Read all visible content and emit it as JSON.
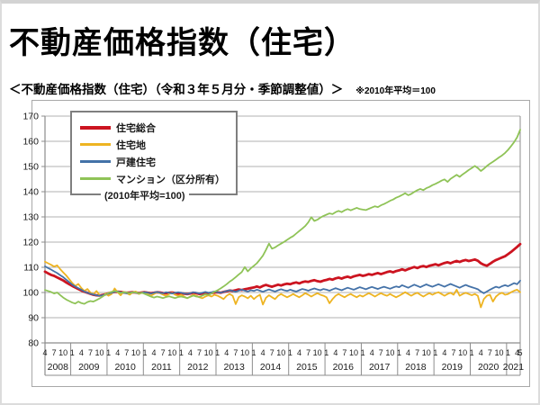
{
  "page": {
    "title": "不動産価格指数（住宅）",
    "subtitle": "＜不動産価格指数（住宅）（令和３年５月分・季節調整値）＞",
    "note": "※2010年平均＝100"
  },
  "chart_data": {
    "type": "line",
    "title": "不動産価格指数（住宅）",
    "annotation": "(2010年平均=100)",
    "x_unit": "month",
    "x_start": "2008-04",
    "x_end": "2021-05",
    "x_year_labels": [
      "2008",
      "2009",
      "2010",
      "2011",
      "2012",
      "2013",
      "2014",
      "2015",
      "2016",
      "2017",
      "2018",
      "2019",
      "2020",
      "2021"
    ],
    "x_month_tick_labels": {
      "first_year": [
        4,
        7,
        10
      ],
      "regular_years": [
        1,
        4,
        7,
        10
      ],
      "last_year": [
        1,
        4,
        5
      ]
    },
    "ylim": [
      80,
      170
    ],
    "y_ticks": [
      80,
      90,
      100,
      110,
      120,
      130,
      140,
      150,
      160,
      170
    ],
    "grid": "horizontal",
    "legend_position": "top-left",
    "colors": {
      "grid": "#b0b0b0",
      "axis": "#8c8c8c",
      "text": "#1a1a1a"
    },
    "series": [
      {
        "name": "住宅総合",
        "color": "#cc1420",
        "width": 2.8,
        "values": [
          108.3,
          107.6,
          107.0,
          106.6,
          106.0,
          105.4,
          104.8,
          104.0,
          103.3,
          102.6,
          102.0,
          101.4,
          100.8,
          100.3,
          99.9,
          99.5,
          99.1,
          98.9,
          98.8,
          99.0,
          99.3,
          99.7,
          100.0,
          100.2,
          100.3,
          100.2,
          100.0,
          99.9,
          100.0,
          100.1,
          100.0,
          99.8,
          100.0,
          100.1,
          99.9,
          99.7,
          99.9,
          100.1,
          100.0,
          99.8,
          99.7,
          99.9,
          100.0,
          99.8,
          99.6,
          99.7,
          99.5,
          99.4,
          99.6,
          99.9,
          99.7,
          99.4,
          99.6,
          99.8,
          99.6,
          99.8,
          100.0,
          100.1,
          99.9,
          100.2,
          100.5,
          100.8,
          100.6,
          100.9,
          101.2,
          101.0,
          101.3,
          101.5,
          101.8,
          102.0,
          102.4,
          102.0,
          102.6,
          103.0,
          102.6,
          102.3,
          102.7,
          103.1,
          102.8,
          103.2,
          103.5,
          103.3,
          103.7,
          104.0,
          103.6,
          104.1,
          104.4,
          104.2,
          104.6,
          104.9,
          104.5,
          104.3,
          104.7,
          105.0,
          105.4,
          105.1,
          105.6,
          105.9,
          105.5,
          106.0,
          106.3,
          105.9,
          106.4,
          106.7,
          107.0,
          106.6,
          106.9,
          107.3,
          107.0,
          107.4,
          107.7,
          107.3,
          107.7,
          108.1,
          108.4,
          108.0,
          108.5,
          108.8,
          109.2,
          108.8,
          109.3,
          109.7,
          110.1,
          109.7,
          110.2,
          110.5,
          110.1,
          110.6,
          110.9,
          111.2,
          110.8,
          111.3,
          111.7,
          112.0,
          111.6,
          112.1,
          112.5,
          112.1,
          112.6,
          112.9,
          112.5,
          112.8,
          113.1,
          112.6,
          111.6,
          111.0,
          110.6,
          111.4,
          112.2,
          112.9,
          113.4,
          113.9,
          114.4,
          115.2,
          116.1,
          117.1,
          118.1,
          119.2
        ]
      },
      {
        "name": "住宅地",
        "color": "#eeb422",
        "width": 1.8,
        "values": [
          112.2,
          111.6,
          111.0,
          110.3,
          110.8,
          109.3,
          108.0,
          106.8,
          105.3,
          103.8,
          102.6,
          103.4,
          101.8,
          100.6,
          101.4,
          100.0,
          99.3,
          100.6,
          99.0,
          98.4,
          99.6,
          98.7,
          99.4,
          101.6,
          100.1,
          98.9,
          100.3,
          99.7,
          99.1,
          100.1,
          100.4,
          99.4,
          99.9,
          100.1,
          99.4,
          98.7,
          99.4,
          100.1,
          99.7,
          99.1,
          98.7,
          99.4,
          99.9,
          99.1,
          98.7,
          99.1,
          98.4,
          97.7,
          98.4,
          99.1,
          98.7,
          98.1,
          97.7,
          98.4,
          98.9,
          98.4,
          99.1,
          98.7,
          98.1,
          97.4,
          98.7,
          99.4,
          98.7,
          95.4,
          98.1,
          98.9,
          98.4,
          97.7,
          98.7,
          97.4,
          98.4,
          99.1,
          95.2,
          97.9,
          98.9,
          98.1,
          97.4,
          98.7,
          99.4,
          98.7,
          98.1,
          98.7,
          99.4,
          98.7,
          98.1,
          98.9,
          99.7,
          99.1,
          98.4,
          99.1,
          99.7,
          99.1,
          98.7,
          98.1,
          95.7,
          97.4,
          98.7,
          99.4,
          98.7,
          98.1,
          98.9,
          99.4,
          98.7,
          98.1,
          98.9,
          98.4,
          99.1,
          99.7,
          99.1,
          98.4,
          99.1,
          99.7,
          99.1,
          98.7,
          99.4,
          98.7,
          98.1,
          98.7,
          99.4,
          100.1,
          99.4,
          98.7,
          99.4,
          99.9,
          99.1,
          98.4,
          99.1,
          99.7,
          99.1,
          99.7,
          100.1,
          99.4,
          98.7,
          99.4,
          99.9,
          99.1,
          101.1,
          98.7,
          99.4,
          99.9,
          99.4,
          98.9,
          99.4,
          98.7,
          94.1,
          97.4,
          98.7,
          99.1,
          96.4,
          98.4,
          99.4,
          99.9,
          99.1,
          99.4,
          100.1,
          100.7,
          101.1,
          100.1
        ]
      },
      {
        "name": "戸建住宅",
        "color": "#4472a8",
        "width": 1.8,
        "values": [
          110.4,
          109.7,
          109.1,
          108.4,
          107.7,
          106.9,
          106.1,
          105.1,
          104.1,
          103.1,
          102.4,
          101.7,
          101.1,
          100.4,
          99.9,
          99.5,
          99.2,
          98.9,
          98.7,
          98.9,
          99.2,
          99.6,
          99.9,
          100.2,
          100.4,
          100.1,
          99.9,
          99.7,
          99.9,
          100.1,
          99.9,
          99.7,
          99.9,
          100.1,
          99.9,
          99.6,
          99.9,
          100.2,
          99.9,
          99.7,
          100.1,
          99.9,
          99.6,
          99.9,
          100.1,
          99.9,
          99.6,
          99.4,
          99.7,
          100.1,
          99.9,
          99.6,
          99.9,
          100.2,
          99.9,
          100.1,
          100.4,
          100.1,
          99.9,
          100.2,
          100.6,
          100.9,
          100.6,
          100.3,
          100.7,
          101.1,
          100.7,
          100.4,
          100.9,
          100.6,
          101.1,
          100.7,
          100.3,
          100.8,
          101.2,
          100.8,
          100.4,
          100.9,
          101.3,
          100.9,
          100.6,
          101.1,
          100.7,
          100.4,
          100.9,
          101.4,
          101.1,
          100.7,
          101.2,
          101.6,
          101.2,
          100.9,
          101.4,
          101.1,
          100.7,
          101.2,
          101.7,
          101.3,
          100.9,
          101.4,
          101.9,
          101.5,
          101.1,
          101.6,
          102.1,
          101.7,
          101.3,
          101.8,
          102.2,
          101.8,
          101.4,
          101.9,
          102.3,
          101.9,
          101.5,
          102.0,
          102.4,
          102.1,
          102.9,
          102.4,
          101.9,
          102.5,
          103.1,
          102.6,
          102.1,
          102.7,
          103.2,
          102.7,
          102.3,
          102.8,
          103.3,
          102.8,
          102.3,
          102.9,
          103.4,
          102.9,
          102.4,
          101.9,
          102.5,
          103.0,
          102.5,
          102.1,
          101.7,
          101.3,
          100.4,
          99.7,
          100.4,
          101.1,
          101.7,
          102.3,
          101.9,
          102.5,
          102.9,
          102.5,
          103.1,
          103.7,
          103.3,
          104.7
        ]
      },
      {
        "name": "マンション（区分所有）",
        "color": "#8fc357",
        "width": 1.8,
        "values": [
          101.0,
          100.6,
          100.2,
          99.6,
          100.0,
          99.0,
          98.0,
          97.2,
          96.6,
          96.0,
          95.6,
          96.4,
          95.8,
          95.5,
          96.2,
          96.6,
          96.4,
          97.0,
          97.6,
          98.4,
          99.2,
          99.8,
          100.3,
          100.6,
          100.2,
          99.8,
          100.1,
          100.0,
          99.7,
          100.1,
          100.0,
          99.7,
          99.9,
          99.4,
          98.9,
          98.4,
          98.0,
          98.4,
          98.1,
          97.8,
          98.2,
          98.5,
          98.1,
          97.8,
          98.2,
          98.4,
          98.1,
          97.8,
          98.3,
          98.8,
          98.4,
          98.2,
          98.8,
          99.3,
          99.0,
          99.6,
          100.3,
          100.9,
          101.6,
          102.4,
          103.3,
          104.3,
          105.1,
          106.1,
          107.1,
          108.1,
          110.1,
          108.4,
          109.6,
          110.6,
          111.6,
          113.1,
          114.6,
          116.9,
          119.4,
          117.4,
          117.9,
          118.7,
          119.4,
          120.1,
          120.9,
          121.7,
          122.4,
          123.4,
          124.4,
          125.4,
          126.4,
          127.9,
          129.9,
          128.4,
          128.9,
          129.7,
          130.4,
          130.9,
          131.4,
          131.1,
          131.9,
          132.4,
          131.9,
          132.6,
          133.1,
          132.6,
          133.1,
          133.6,
          133.1,
          132.9,
          132.7,
          133.2,
          133.7,
          134.2,
          133.9,
          134.6,
          135.1,
          135.7,
          136.4,
          136.9,
          137.6,
          138.1,
          138.7,
          139.4,
          138.6,
          139.1,
          139.9,
          140.6,
          141.1,
          140.6,
          141.4,
          141.9,
          142.6,
          143.1,
          143.7,
          144.4,
          144.9,
          143.9,
          145.1,
          145.9,
          146.7,
          145.9,
          146.9,
          147.7,
          148.6,
          149.4,
          150.2,
          149.4,
          148.2,
          149.1,
          150.2,
          151.1,
          151.9,
          152.7,
          153.6,
          154.4,
          155.4,
          156.6,
          158.1,
          159.7,
          161.6,
          164.6
        ]
      }
    ]
  }
}
